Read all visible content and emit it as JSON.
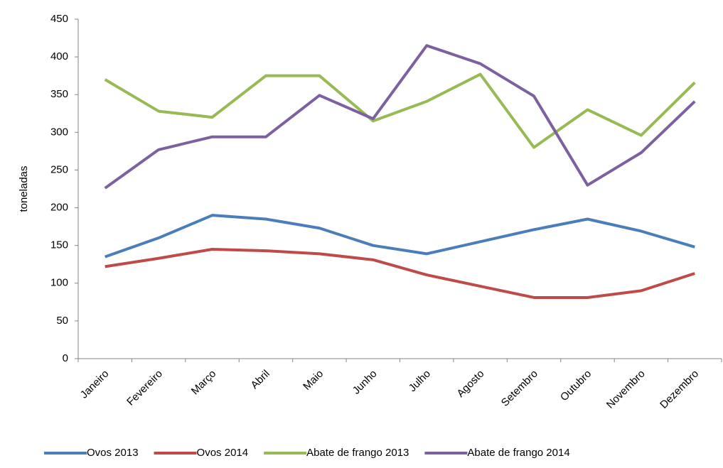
{
  "chart_data": {
    "type": "line",
    "y_label": "toneladas",
    "categories": [
      "Janeiro",
      "Fevereiro",
      "Março",
      "Abril",
      "Maio",
      "Junho",
      "Julho",
      "Agosto",
      "Setembro",
      "Outubro",
      "Novembro",
      "Dezembro"
    ],
    "series": [
      {
        "name": "Ovos 2013",
        "color": "#4a7ebb",
        "values": [
          135,
          160,
          190,
          185,
          173,
          150,
          139,
          155,
          171,
          185,
          169,
          148
        ]
      },
      {
        "name": "Ovos 2014",
        "color": "#be4b48",
        "values": [
          122,
          133,
          145,
          143,
          139,
          131,
          111,
          96,
          81,
          81,
          90,
          113
        ]
      },
      {
        "name": "Abate de frango 2013",
        "color": "#98b954",
        "values": [
          370,
          328,
          320,
          375,
          375,
          315,
          341,
          377,
          280,
          330,
          296,
          366
        ]
      },
      {
        "name": "Abate de frango 2014",
        "color": "#7d60a0",
        "values": [
          226,
          277,
          294,
          294,
          349,
          318,
          415,
          391,
          348,
          230,
          273,
          341
        ]
      }
    ],
    "ylim": [
      0,
      450
    ],
    "yticks": [
      0,
      50,
      100,
      150,
      200,
      250,
      300,
      350,
      400,
      450
    ],
    "grid": false,
    "legend": "bottom"
  }
}
